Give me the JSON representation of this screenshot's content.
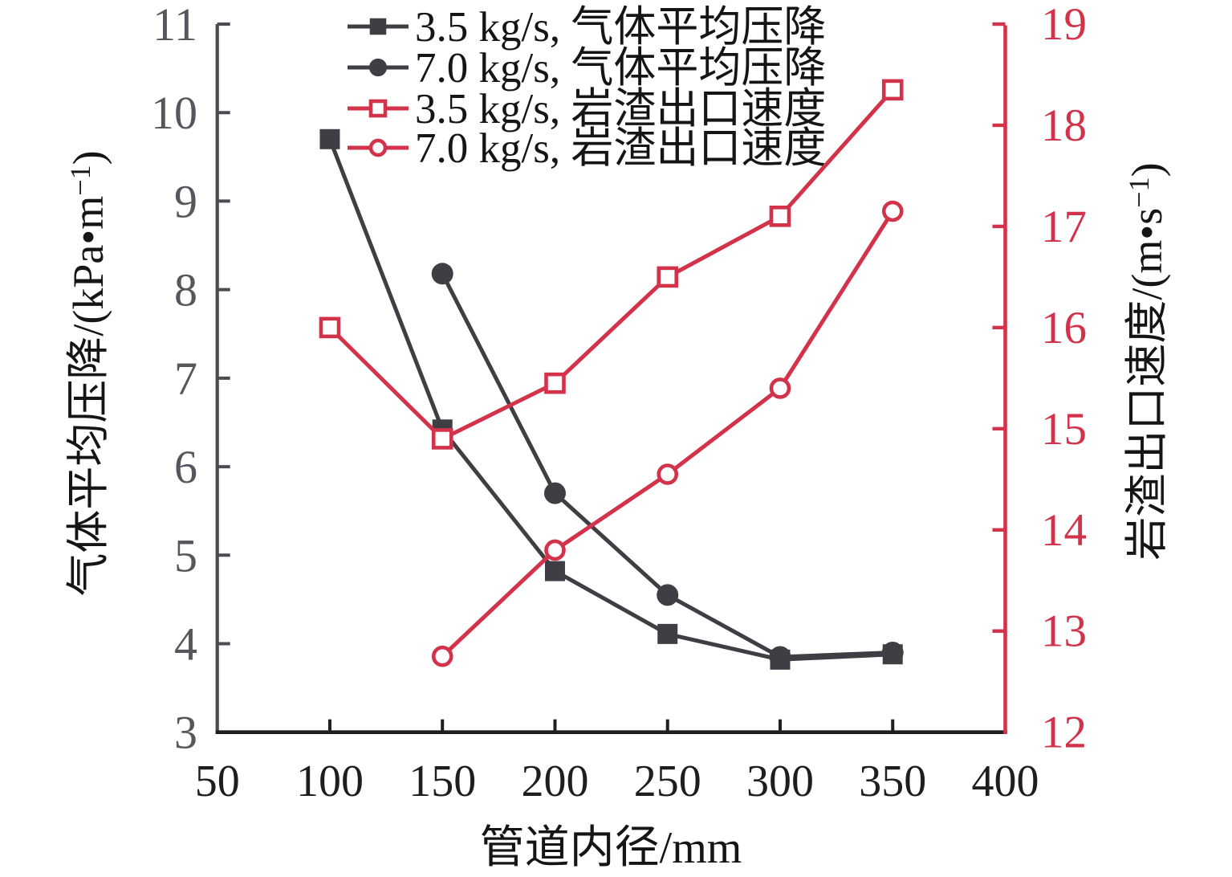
{
  "figure": {
    "background": "#ffffff",
    "colors": {
      "dark_series": "#3e3e44",
      "red_series": "#d2334a",
      "left_axis_spine": "#4b4b51",
      "bottom_axis_spine": "#1f1f22",
      "right_axis_spine": "#d2334a",
      "left_tick_text": "#56565c",
      "bottom_tick_text": "#1e1e1e",
      "right_tick_text": "#d2334a",
      "title_text": "#151515"
    }
  },
  "chart_data": {
    "type": "line",
    "title": "",
    "xlabel": "管道内径/mm",
    "ylabel_left": "气体平均压降/(kPa•m⁻¹)",
    "ylabel_right": "岩渣出口速度/(m•s⁻¹)",
    "xlim": [
      50,
      400
    ],
    "xticks": [
      50,
      100,
      150,
      200,
      250,
      300,
      350,
      400
    ],
    "ylim_left": [
      3,
      11
    ],
    "yticks_left": [
      3,
      4,
      5,
      6,
      7,
      8,
      9,
      10,
      11
    ],
    "ylim_right": [
      12,
      19
    ],
    "yticks_right": [
      12,
      13,
      14,
      15,
      16,
      17,
      18,
      19
    ],
    "grid": false,
    "legend_position": "top-left-inside",
    "series": [
      {
        "name": "3.5 kg/s, 气体平均压降",
        "axis": "left",
        "color": "#3e3e44",
        "marker": "square-filled",
        "x": [
          100,
          150,
          200,
          250,
          300,
          350
        ],
        "y": [
          9.7,
          6.42,
          4.82,
          4.11,
          3.82,
          3.88
        ]
      },
      {
        "name": "7.0 kg/s, 气体平均压降",
        "axis": "left",
        "color": "#3e3e44",
        "marker": "circle-filled",
        "x": [
          150,
          200,
          250,
          300,
          350
        ],
        "y": [
          8.18,
          5.7,
          4.55,
          3.85,
          3.9
        ]
      },
      {
        "name": "3.5 kg/s, 岩渣出口速度",
        "axis": "right",
        "color": "#d2334a",
        "marker": "square-open",
        "x": [
          100,
          150,
          200,
          250,
          300,
          350
        ],
        "y": [
          16.0,
          14.9,
          15.45,
          16.5,
          17.1,
          18.35
        ]
      },
      {
        "name": "7.0 kg/s, 岩渣出口速度",
        "axis": "right",
        "color": "#d2334a",
        "marker": "circle-open",
        "x": [
          150,
          200,
          250,
          300,
          350
        ],
        "y": [
          12.75,
          13.8,
          14.55,
          15.4,
          17.15
        ]
      }
    ]
  }
}
